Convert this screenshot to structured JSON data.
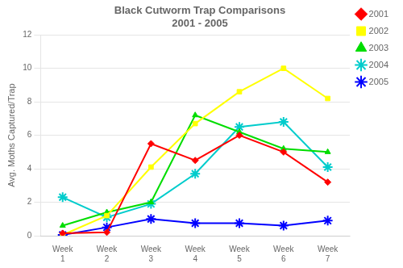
{
  "chart_data": {
    "type": "line",
    "title": "Black Cutworm Trap Comparisons\n2001 - 2005",
    "y_label": "Avg. Moths Captured/Trap",
    "x": [
      1,
      2,
      3,
      4,
      5,
      6,
      7
    ],
    "series": [
      {
        "name": "2001",
        "color": "#ff0000",
        "marker": "diamond",
        "values": [
          0.15,
          0.2,
          5.5,
          4.5,
          6.0,
          5.0,
          3.2
        ]
      },
      {
        "name": "2002",
        "color": "#ffff00",
        "marker": "square",
        "values": [
          0.05,
          1.2,
          4.1,
          6.7,
          8.6,
          10.0,
          8.2
        ]
      },
      {
        "name": "2003",
        "color": "#00dd00",
        "marker": "triangle",
        "values": [
          0.6,
          1.4,
          2.0,
          7.2,
          6.2,
          5.2,
          5.0
        ]
      },
      {
        "name": "2004",
        "color": "#00cccc",
        "marker": "star",
        "values": [
          2.3,
          1.1,
          1.9,
          3.7,
          6.5,
          6.8,
          4.1
        ]
      },
      {
        "name": "2005",
        "color": "#0000ff",
        "marker": "star",
        "values": [
          0.05,
          0.5,
          1.0,
          0.75,
          0.75,
          0.6,
          0.9
        ]
      }
    ],
    "xlim": [
      0.5,
      7.5
    ],
    "xticks": [
      {
        "value": 1,
        "label": "Week\n1"
      },
      {
        "value": 2,
        "label": "Week\n2"
      },
      {
        "value": 3,
        "label": "Week\n3"
      },
      {
        "value": 4,
        "label": "Week\n4"
      },
      {
        "value": 5,
        "label": "Week\n5"
      },
      {
        "value": 6,
        "label": "Week\n6"
      },
      {
        "value": 7,
        "label": "Week\n7"
      }
    ],
    "ylim": [
      0,
      12
    ],
    "yticks": [
      0,
      2,
      4,
      6,
      8,
      10,
      12
    ],
    "grid": "y",
    "legend": "right"
  }
}
